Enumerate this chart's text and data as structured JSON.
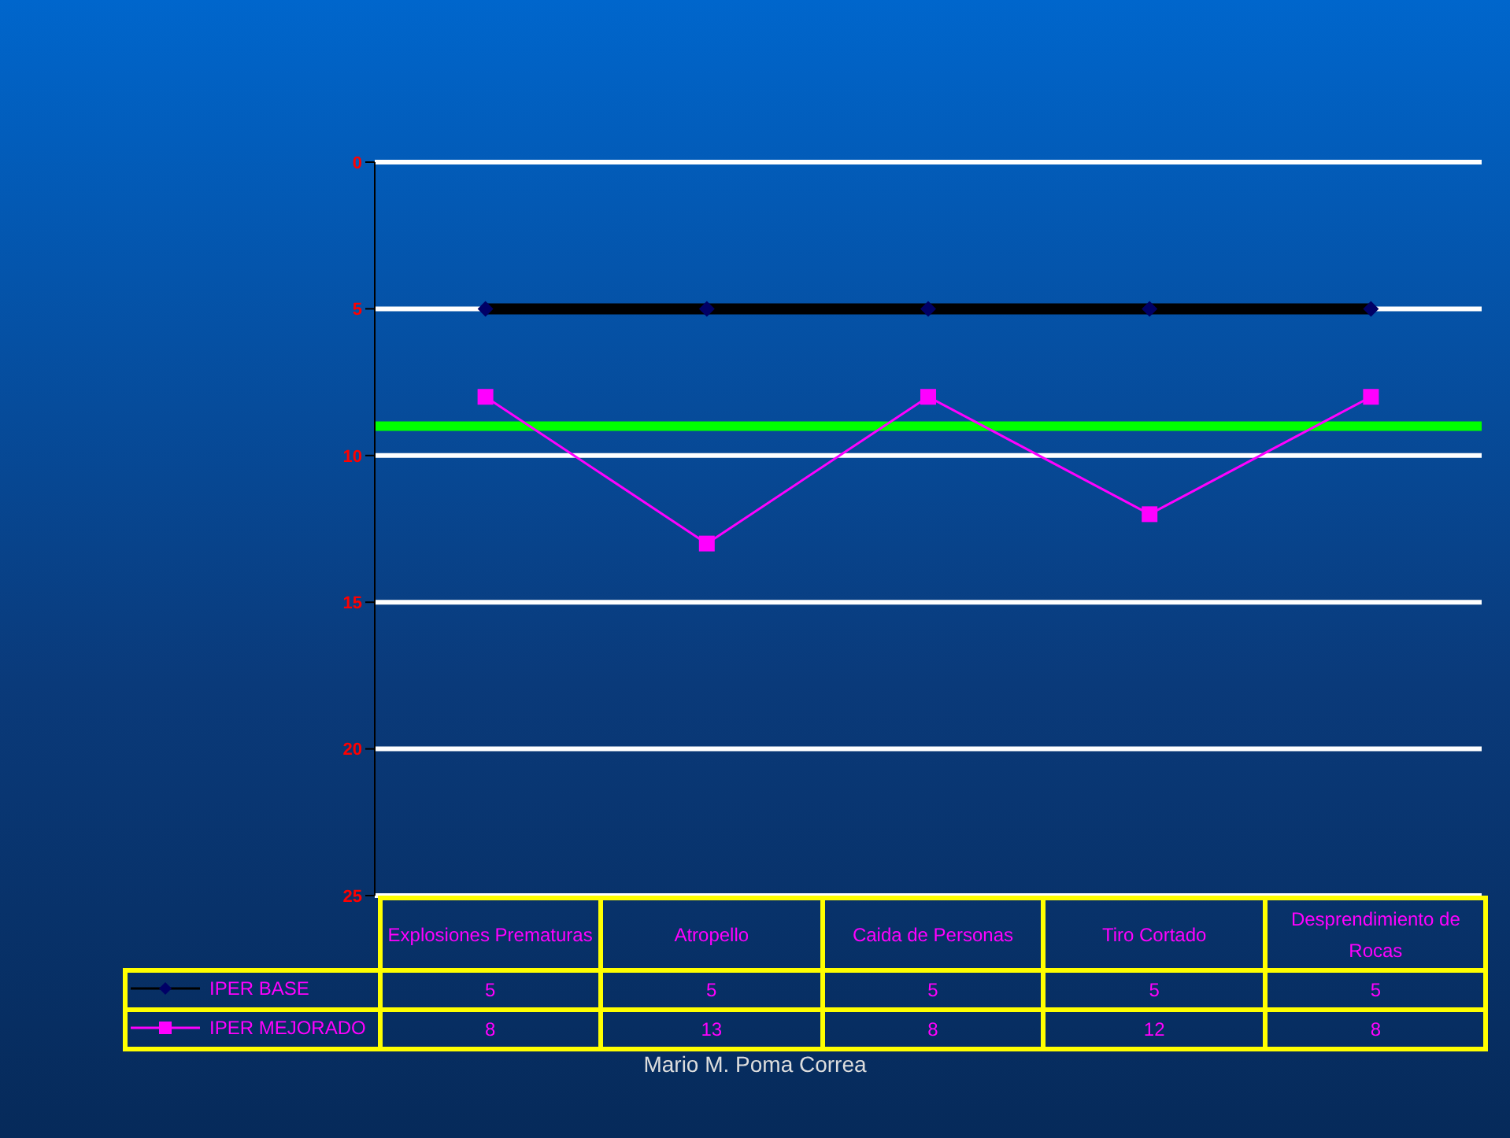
{
  "chart_data": {
    "type": "line",
    "categories": [
      "Explosiones Prematuras",
      "Atropello",
      "Caida de Personas",
      "Tiro Cortado",
      "Desprendimiento de Rocas"
    ],
    "series": [
      {
        "name": "IPER BASE",
        "color": "#000000",
        "marker": "diamond",
        "values": [
          5,
          5,
          5,
          5,
          5
        ]
      },
      {
        "name": "IPER MEJORADO",
        "color": "#ff00ff",
        "marker": "square",
        "values": [
          8,
          13,
          8,
          12,
          8
        ]
      }
    ],
    "ylim": [
      25,
      0
    ],
    "yticks": [
      0,
      5,
      10,
      15,
      20,
      25
    ],
    "grid": "y",
    "legend": "bottom",
    "data_labels": true,
    "ref_lines": [
      {
        "axis": "y",
        "value": 9,
        "color": "#00ff00"
      }
    ],
    "annotations": [
      "Mario M. Poma Correa"
    ]
  }
}
